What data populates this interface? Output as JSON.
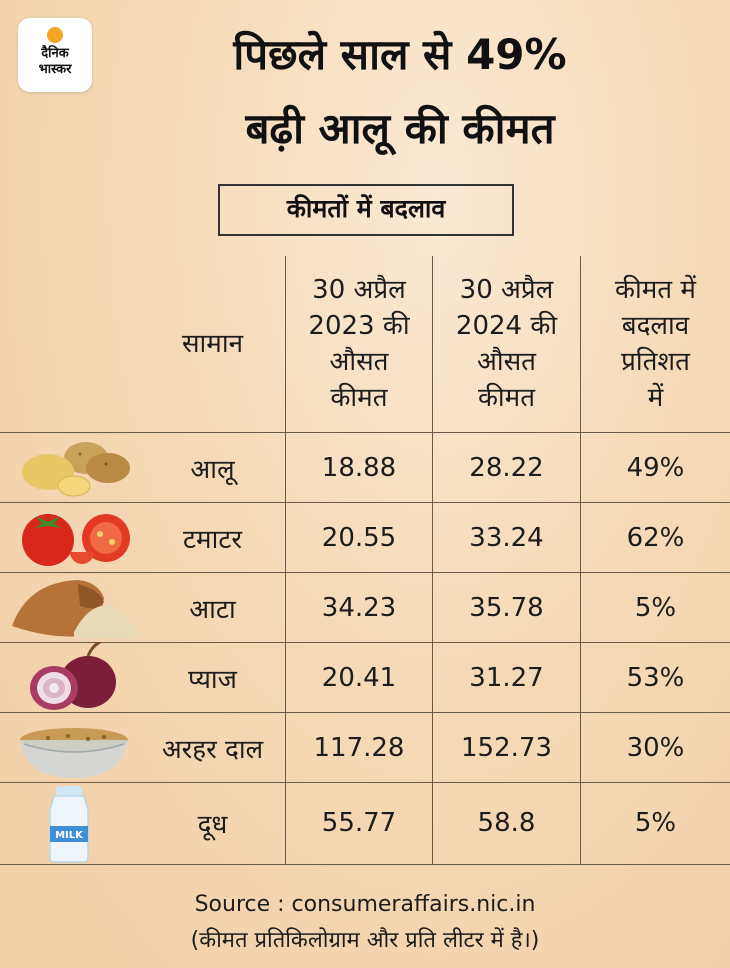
{
  "logo": {
    "line1": "दैनिक",
    "line2": "भास्कर"
  },
  "title": {
    "line1": "पिछले साल से 49%",
    "line2": "बढ़ी आलू की कीमत"
  },
  "subheading": "कीमतों में बदलाव",
  "columns": [
    {
      "lines": [
        "सामान"
      ]
    },
    {
      "lines": [
        "30 अप्रैल",
        "2023 की",
        "औसत",
        "कीमत"
      ]
    },
    {
      "lines": [
        "30 अप्रैल",
        "2024 की",
        "औसत",
        "कीमत"
      ]
    },
    {
      "lines": [
        "कीमत में",
        "बदलाव",
        "प्रतिशत",
        "में"
      ]
    }
  ],
  "rows": [
    {
      "item": "आलू",
      "price_2023": "18.88",
      "price_2024": "28.22",
      "change": "49%",
      "icon": "potato-icon"
    },
    {
      "item": "टमाटर",
      "price_2023": "20.55",
      "price_2024": "33.24",
      "change": "62%",
      "icon": "tomato-icon"
    },
    {
      "item": "आटा",
      "price_2023": "34.23",
      "price_2024": "35.78",
      "change": "5%",
      "icon": "flour-sack-icon"
    },
    {
      "item": "प्याज",
      "price_2023": "20.41",
      "price_2024": "31.27",
      "change": "53%",
      "icon": "onion-icon"
    },
    {
      "item": "अरहर दाल",
      "price_2023": "117.28",
      "price_2024": "152.73",
      "change": "30%",
      "icon": "dal-bowl-icon"
    },
    {
      "item": "दूध",
      "price_2023": "55.77",
      "price_2024": "58.8",
      "change": "5%",
      "icon": "milk-bottle-icon",
      "icon_label": "MILK"
    }
  ],
  "source": "Source : consumeraffairs.nic.in",
  "note": "(कीमत प्रतिकिलोग्राम और प्रति लीटर में है।)",
  "chart_data": {
    "type": "table",
    "title": "पिछले साल से 49% बढ़ी आलू की कीमत",
    "subtitle": "कीमतों में बदलाव",
    "headers": [
      "सामान",
      "30 अप्रैल 2023 की औसत कीमत",
      "30 अप्रैल 2024 की औसत कीमत",
      "कीमत में बदलाव प्रतिशत में"
    ],
    "categories": [
      "आलू",
      "टमाटर",
      "आटा",
      "प्याज",
      "अरहर दाल",
      "दूध"
    ],
    "series": [
      {
        "name": "30 अप्रैल 2023 की औसत कीमत",
        "values": [
          18.88,
          20.55,
          34.23,
          20.41,
          117.28,
          55.77
        ]
      },
      {
        "name": "30 अप्रैल 2024 की औसत कीमत",
        "values": [
          28.22,
          33.24,
          35.78,
          31.27,
          152.73,
          58.8
        ]
      },
      {
        "name": "कीमत में बदलाव प्रतिशत में",
        "values": [
          49,
          62,
          5,
          53,
          30,
          5
        ]
      }
    ]
  },
  "colors": {
    "background": "#f6d9b7",
    "gridline": "#6a5a4a",
    "text": "#1c1c1c",
    "logo_sun": "#f5a623"
  }
}
